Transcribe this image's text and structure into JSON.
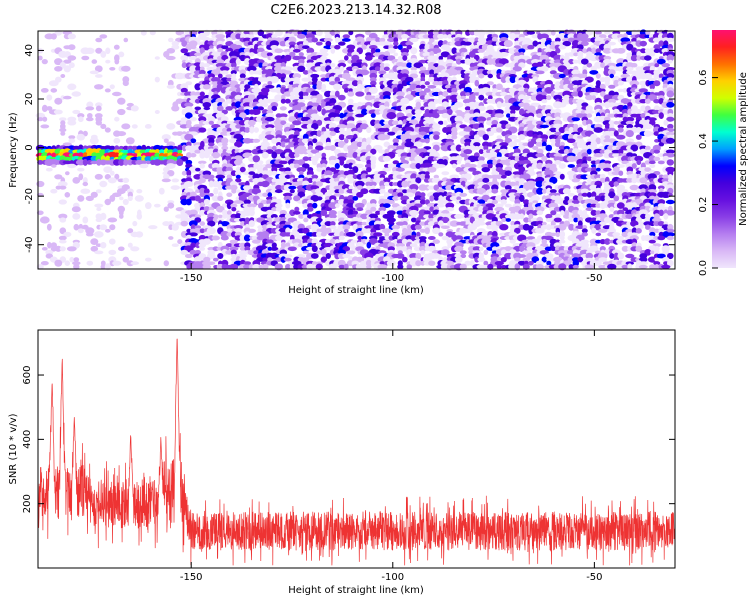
{
  "title": "C2E6.2023.213.14.32.R08",
  "chart_data": [
    {
      "type": "heatmap",
      "xlabel": "Height of straight line (km)",
      "ylabel": "Frequency (Hz)",
      "xlim": [
        -188,
        -30
      ],
      "ylim": [
        -50,
        48
      ],
      "xticks": [
        -150,
        -100,
        -50
      ],
      "yticks": [
        -40,
        -20,
        0,
        20,
        40
      ],
      "colorbar": {
        "label": "Normalized spectral amplitude",
        "range": [
          0,
          0.75
        ],
        "ticks": [
          0.0,
          0.2,
          0.4,
          0.6
        ]
      },
      "signal": {
        "x_range": [
          -188,
          -152
        ],
        "frequency": -3,
        "peak_amplitude": 0.7
      },
      "noise_region_start": -152,
      "colors": [
        "#ffffff",
        "#f0e6fc",
        "#d9b8f6",
        "#b57ef0",
        "#8a3fe6",
        "#6610e0",
        "#4400dd",
        "#0000ff",
        "#00a0ff",
        "#00ffd0",
        "#40ff40",
        "#d0ff00",
        "#ffd000",
        "#ff7000",
        "#ff2020",
        "#ff1070"
      ]
    },
    {
      "type": "line",
      "xlabel": "Height of straight line (km)",
      "ylabel": "SNR (10 * v/v)",
      "xlim": [
        -188,
        -30
      ],
      "ylim": [
        0,
        740
      ],
      "xticks": [
        -150,
        -100,
        -50
      ],
      "yticks": [
        200,
        400,
        600
      ],
      "line_color": "#ee3333",
      "segments": [
        {
          "x_range": [
            -188,
            -175
          ],
          "mean": 240,
          "spread": 150
        },
        {
          "x_range": [
            -175,
            -158
          ],
          "mean": 200,
          "spread": 140
        },
        {
          "x_range": [
            -158,
            -151
          ],
          "mean": 230,
          "spread": 200
        },
        {
          "x_range": [
            -151,
            -30
          ],
          "mean": 115,
          "spread": 110
        }
      ],
      "peaks": [
        {
          "x": -153.5,
          "y": 735
        },
        {
          "x": -182,
          "y": 660
        },
        {
          "x": -184.5,
          "y": 590
        },
        {
          "x": -157.5,
          "y": 400
        },
        {
          "x": -179,
          "y": 470
        },
        {
          "x": -165,
          "y": 420
        }
      ]
    }
  ]
}
